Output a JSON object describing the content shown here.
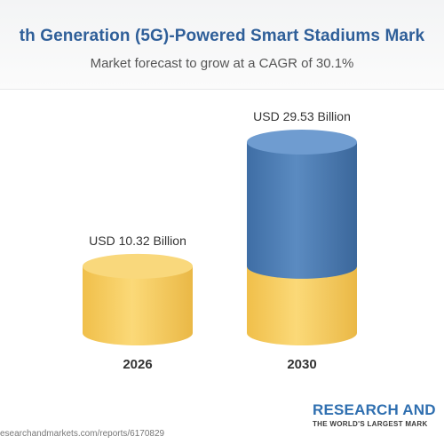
{
  "chart_data": {
    "type": "bar",
    "title": "th Generation (5G)-Powered Smart Stadiums Mark",
    "subtitle": "Market forecast to grow at a CAGR of 30.1%",
    "categories": [
      "2026",
      "2030"
    ],
    "values": [
      10.32,
      29.53
    ],
    "data_labels": [
      "USD 10.32 Billion",
      "USD 29.53 Billion"
    ],
    "unit": "USD Billion",
    "style": "3D cylinders",
    "colors": {
      "gold": "#f2c85c",
      "blue": "#4a78ad",
      "title": "#2f5f99"
    }
  },
  "footer": {
    "source": "esearchandmarkets.com/reports/6170829"
  },
  "logo": {
    "name": "RESEARCH AND",
    "tagline": "THE WORLD'S LARGEST MARK"
  }
}
